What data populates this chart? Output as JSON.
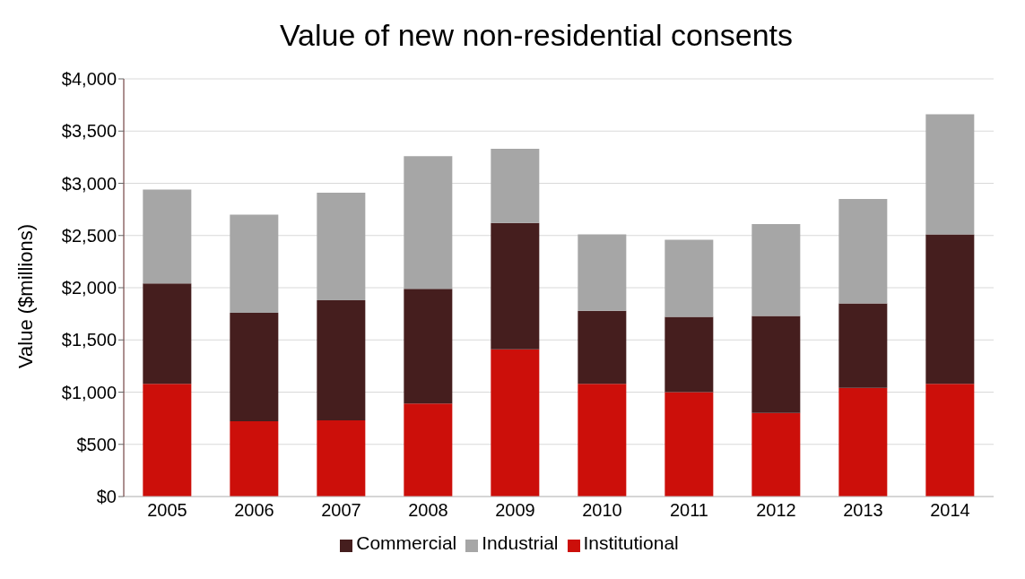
{
  "chart_data": {
    "type": "bar",
    "title": "Value of new non-residential consents",
    "ylabel": "Value ($millions)",
    "stacked": true,
    "categories": [
      "2005",
      "2006",
      "2007",
      "2008",
      "2009",
      "2010",
      "2011",
      "2012",
      "2013",
      "2014"
    ],
    "series": [
      {
        "name": "Institutional",
        "color": "#cc0f0a",
        "values": [
          1080,
          720,
          730,
          890,
          1410,
          1080,
          1000,
          800,
          1040,
          1080
        ]
      },
      {
        "name": "Commercial",
        "color": "#451e1e",
        "values": [
          960,
          1040,
          1150,
          1100,
          1210,
          700,
          720,
          930,
          810,
          1430
        ]
      },
      {
        "name": "Industrial",
        "color": "#a6a6a6",
        "values": [
          900,
          940,
          1030,
          1270,
          710,
          730,
          740,
          880,
          1000,
          1150
        ]
      }
    ],
    "ylim": [
      0,
      4000
    ],
    "yticks": [
      {
        "value": 0,
        "label": "$0"
      },
      {
        "value": 500,
        "label": "$500"
      },
      {
        "value": 1000,
        "label": "$1,000"
      },
      {
        "value": 1500,
        "label": "$1,500"
      },
      {
        "value": 2000,
        "label": "$2,000"
      },
      {
        "value": 2500,
        "label": "$2,500"
      },
      {
        "value": 3000,
        "label": "$3,000"
      },
      {
        "value": 3500,
        "label": "$3,500"
      },
      {
        "value": 4000,
        "label": "$4,000"
      }
    ],
    "grid": "y",
    "legend": "bottom"
  }
}
